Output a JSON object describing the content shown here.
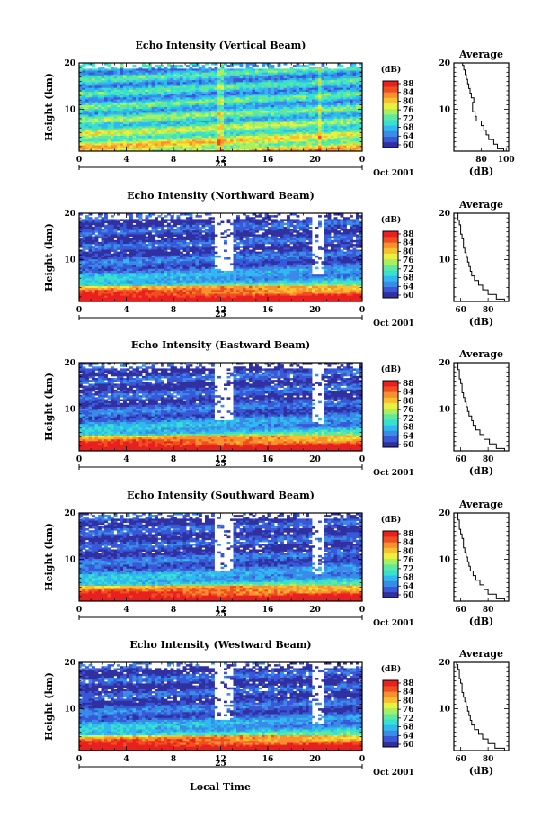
{
  "figure": {
    "x_axis_label": "Local Time",
    "date_text": "Oct 2001",
    "day_label": "25",
    "y_axis_label": "Height (km)",
    "avg_title": "Average",
    "avg_xlabel": "(dB)",
    "colorbar_label": "(dB)",
    "colorbar_ticks": [
      "88",
      "84",
      "80",
      "76",
      "72",
      "68",
      "64",
      "60"
    ],
    "colormap": [
      "#3030a0",
      "#3858d8",
      "#3a8ae8",
      "#30b8f0",
      "#38e0d0",
      "#60e8a0",
      "#a8f060",
      "#e8f040",
      "#f8c030",
      "#f89030",
      "#f05020",
      "#e82020"
    ]
  },
  "chart_data": [
    {
      "type": "heatmap",
      "title": "Echo Intensity (Vertical Beam)",
      "x_ticks": [
        "0",
        "4",
        "8",
        "12",
        "16",
        "20",
        "0"
      ],
      "x_range": [
        0,
        24
      ],
      "y_ticks": [
        "20",
        "10"
      ],
      "y_range": [
        1,
        20
      ],
      "zlim": [
        60,
        88
      ],
      "avg_profile": {
        "x_ticks": [
          "80",
          "100"
        ],
        "x_range": [
          58,
          102
        ],
        "height_km": [
          1,
          2,
          3,
          4,
          5,
          6,
          7,
          8,
          9,
          10,
          11,
          12,
          13,
          14,
          15,
          16,
          17,
          18,
          19,
          20
        ],
        "db": [
          98,
          93,
          90,
          86,
          84,
          82,
          80,
          76,
          75,
          73,
          73,
          74,
          72,
          71,
          70,
          69,
          68,
          67,
          66,
          65
        ]
      }
    },
    {
      "type": "heatmap",
      "title": "Echo Intensity (Northward Beam)",
      "x_ticks": [
        "0",
        "4",
        "8",
        "12",
        "16",
        "20",
        "0"
      ],
      "x_range": [
        0,
        24
      ],
      "y_ticks": [
        "20",
        "10"
      ],
      "y_range": [
        1,
        20
      ],
      "zlim": [
        60,
        88
      ],
      "avg_profile": {
        "x_ticks": [
          "60",
          "80"
        ],
        "x_range": [
          55,
          95
        ],
        "height_km": [
          1,
          2,
          3,
          4,
          5,
          6,
          7,
          8,
          9,
          10,
          11,
          12,
          13,
          14,
          15,
          16,
          17,
          18,
          19,
          20
        ],
        "db": [
          92,
          86,
          80,
          76,
          73,
          70,
          68,
          67,
          66,
          65,
          64,
          63,
          62,
          62,
          61,
          60,
          60,
          59,
          58,
          58
        ]
      }
    },
    {
      "type": "heatmap",
      "title": "Echo Intensity (Eastward Beam)",
      "x_ticks": [
        "0",
        "4",
        "8",
        "12",
        "16",
        "20",
        "0"
      ],
      "x_range": [
        0,
        24
      ],
      "y_ticks": [
        "20",
        "10"
      ],
      "y_range": [
        1,
        20
      ],
      "zlim": [
        60,
        88
      ],
      "avg_profile": {
        "x_ticks": [
          "60",
          "80"
        ],
        "x_range": [
          55,
          95
        ],
        "height_km": [
          1,
          2,
          3,
          4,
          5,
          6,
          7,
          8,
          9,
          10,
          11,
          12,
          13,
          14,
          15,
          16,
          17,
          18,
          19,
          20
        ],
        "db": [
          92,
          86,
          81,
          77,
          74,
          71,
          69,
          68,
          66,
          65,
          64,
          63,
          62,
          61,
          61,
          60,
          59,
          59,
          58,
          58
        ]
      }
    },
    {
      "type": "heatmap",
      "title": "Echo Intensity (Southward Beam)",
      "x_ticks": [
        "0",
        "4",
        "8",
        "12",
        "16",
        "20",
        "0"
      ],
      "x_range": [
        0,
        24
      ],
      "y_ticks": [
        "20",
        "10"
      ],
      "y_range": [
        1,
        20
      ],
      "zlim": [
        60,
        88
      ],
      "avg_profile": {
        "x_ticks": [
          "60",
          "80"
        ],
        "x_range": [
          55,
          95
        ],
        "height_km": [
          1,
          2,
          3,
          4,
          5,
          6,
          7,
          8,
          9,
          10,
          11,
          12,
          13,
          14,
          15,
          16,
          17,
          18,
          19,
          20
        ],
        "db": [
          92,
          86,
          80,
          77,
          74,
          71,
          69,
          67,
          66,
          65,
          64,
          63,
          62,
          62,
          61,
          60,
          59,
          59,
          58,
          58
        ]
      }
    },
    {
      "type": "heatmap",
      "title": "Echo Intensity (Westward Beam)",
      "x_ticks": [
        "0",
        "4",
        "8",
        "12",
        "16",
        "20",
        "0"
      ],
      "x_range": [
        0,
        24
      ],
      "y_ticks": [
        "20",
        "10"
      ],
      "y_range": [
        1,
        20
      ],
      "zlim": [
        60,
        88
      ],
      "avg_profile": {
        "x_ticks": [
          "60",
          "80"
        ],
        "x_range": [
          55,
          95
        ],
        "height_km": [
          1,
          2,
          3,
          4,
          5,
          6,
          7,
          8,
          9,
          10,
          11,
          12,
          13,
          14,
          15,
          16,
          17,
          18,
          19,
          20
        ],
        "db": [
          92,
          85,
          80,
          76,
          73,
          70,
          68,
          67,
          66,
          65,
          64,
          63,
          62,
          61,
          61,
          60,
          59,
          59,
          58,
          57
        ]
      }
    }
  ]
}
